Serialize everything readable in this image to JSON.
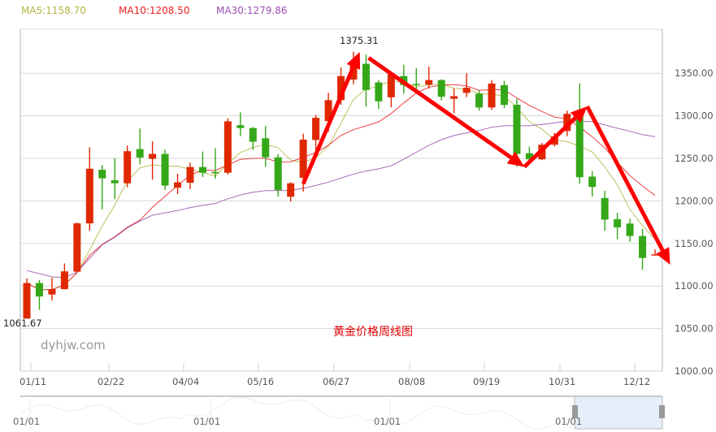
{
  "legend": {
    "ma5": {
      "label": "MA5:1158.70",
      "color": "#b5b540"
    },
    "ma10": {
      "label": "MA10:1208.50",
      "color": "#e82020"
    },
    "ma30": {
      "label": "MA30:1279.86",
      "color": "#9a4fb0"
    }
  },
  "title": "黄金价格周线图",
  "watermark": "dyhjw.com",
  "annotations": {
    "max_label": "1375.31",
    "min_label": "1061.67"
  },
  "navigator": {
    "labels": [
      "01/01",
      "01/01",
      "01/01",
      "01/01"
    ]
  },
  "colors": {
    "up": "#e02800",
    "down": "#34a818",
    "grid": "#d8d8d8",
    "axis": "#c5d2dc",
    "arrow": "#ff0000"
  },
  "chart_data": {
    "type": "candlestick",
    "title": "黄金价格周线图",
    "xlabel": "",
    "ylabel": "",
    "ylim": [
      1000,
      1400
    ],
    "yticks": [
      "1000.00",
      "1050.00",
      "1100.00",
      "1150.00",
      "1200.00",
      "1250.00",
      "1300.00",
      "1350.00"
    ],
    "xticks": [
      "01/11",
      "02/22",
      "04/04",
      "05/16",
      "06/27",
      "08/08",
      "09/19",
      "10/31",
      "12/12"
    ],
    "grid": true,
    "legend_position": "top",
    "ma": {
      "MA5": 1158.7,
      "MA10": 1208.5,
      "MA30": 1279.86
    },
    "max": 1375.31,
    "min": 1061.67,
    "candles": [
      {
        "o": 1061.7,
        "c": 1103.5,
        "h": 1109.0,
        "l": 1061.7
      },
      {
        "o": 1103.5,
        "c": 1087.7,
        "h": 1107.0,
        "l": 1072.0
      },
      {
        "o": 1090.0,
        "c": 1096.3,
        "h": 1109.6,
        "l": 1083.0
      },
      {
        "o": 1096.3,
        "c": 1117.2,
        "h": 1126.5,
        "l": 1096.0
      },
      {
        "o": 1116.8,
        "c": 1173.6,
        "h": 1174.5,
        "l": 1116.5
      },
      {
        "o": 1173.6,
        "c": 1237.8,
        "h": 1263.0,
        "l": 1165.0
      },
      {
        "o": 1236.6,
        "c": 1226.5,
        "h": 1242.0,
        "l": 1190.0
      },
      {
        "o": 1224.3,
        "c": 1220.7,
        "h": 1250.0,
        "l": 1202.0
      },
      {
        "o": 1220.7,
        "c": 1258.4,
        "h": 1265.0,
        "l": 1216.0
      },
      {
        "o": 1260.9,
        "c": 1250.9,
        "h": 1285.0,
        "l": 1243.0
      },
      {
        "o": 1249.4,
        "c": 1255.2,
        "h": 1270.0,
        "l": 1225.0
      },
      {
        "o": 1255.2,
        "c": 1218.0,
        "h": 1260.0,
        "l": 1213.0
      },
      {
        "o": 1215.5,
        "c": 1221.8,
        "h": 1232.0,
        "l": 1208.0
      },
      {
        "o": 1221.4,
        "c": 1239.8,
        "h": 1245.0,
        "l": 1214.0
      },
      {
        "o": 1239.8,
        "c": 1233.1,
        "h": 1258.0,
        "l": 1228.0
      },
      {
        "o": 1234.0,
        "c": 1232.4,
        "h": 1262.0,
        "l": 1226.0
      },
      {
        "o": 1233.1,
        "c": 1293.5,
        "h": 1297.0,
        "l": 1231.0
      },
      {
        "o": 1289.0,
        "c": 1285.6,
        "h": 1304.0,
        "l": 1276.0
      },
      {
        "o": 1285.6,
        "c": 1269.5,
        "h": 1287.0,
        "l": 1260.0
      },
      {
        "o": 1273.6,
        "c": 1251.2,
        "h": 1288.0,
        "l": 1240.0
      },
      {
        "o": 1251.2,
        "c": 1212.7,
        "h": 1255.0,
        "l": 1205.0
      },
      {
        "o": 1204.9,
        "c": 1220.7,
        "h": 1222.0,
        "l": 1199.0
      },
      {
        "o": 1227.2,
        "c": 1272.0,
        "h": 1279.0,
        "l": 1211.0
      },
      {
        "o": 1271.6,
        "c": 1297.6,
        "h": 1301.0,
        "l": 1251.0
      },
      {
        "o": 1293.8,
        "c": 1318.4,
        "h": 1327.0,
        "l": 1281.0
      },
      {
        "o": 1318.4,
        "c": 1346.7,
        "h": 1357.0,
        "l": 1313.0
      },
      {
        "o": 1342.6,
        "c": 1362.7,
        "h": 1375.3,
        "l": 1337.0
      },
      {
        "o": 1361.1,
        "c": 1330.3,
        "h": 1372.0,
        "l": 1311.0
      },
      {
        "o": 1339.2,
        "c": 1317.0,
        "h": 1342.0,
        "l": 1308.0
      },
      {
        "o": 1321.8,
        "c": 1348.7,
        "h": 1352.0,
        "l": 1310.0
      },
      {
        "o": 1346.7,
        "c": 1336.2,
        "h": 1360.0,
        "l": 1326.0
      },
      {
        "o": 1337.4,
        "c": 1337.2,
        "h": 1356.0,
        "l": 1330.0
      },
      {
        "o": 1336.6,
        "c": 1342.0,
        "h": 1358.0,
        "l": 1332.0
      },
      {
        "o": 1342.0,
        "c": 1322.4,
        "h": 1343.0,
        "l": 1318.0
      },
      {
        "o": 1320.0,
        "c": 1323.0,
        "h": 1332.0,
        "l": 1303.0
      },
      {
        "o": 1326.9,
        "c": 1333.0,
        "h": 1350.0,
        "l": 1322.0
      },
      {
        "o": 1326.0,
        "c": 1309.8,
        "h": 1330.0,
        "l": 1306.0
      },
      {
        "o": 1309.8,
        "c": 1337.9,
        "h": 1342.0,
        "l": 1307.0
      },
      {
        "o": 1336.0,
        "c": 1312.8,
        "h": 1341.0,
        "l": 1309.0
      },
      {
        "o": 1313.0,
        "c": 1255.2,
        "h": 1320.0,
        "l": 1240.0
      },
      {
        "o": 1256.0,
        "c": 1248.9,
        "h": 1264.0,
        "l": 1244.0
      },
      {
        "o": 1248.9,
        "c": 1266.0,
        "h": 1268.0,
        "l": 1248.0
      },
      {
        "o": 1266.0,
        "c": 1275.7,
        "h": 1280.0,
        "l": 1264.0
      },
      {
        "o": 1282.1,
        "c": 1302.3,
        "h": 1306.0,
        "l": 1276.0
      },
      {
        "o": 1304.6,
        "c": 1227.8,
        "h": 1338.0,
        "l": 1220.0
      },
      {
        "o": 1228.6,
        "c": 1216.4,
        "h": 1235.0,
        "l": 1205.0
      },
      {
        "o": 1203.4,
        "c": 1178.0,
        "h": 1212.0,
        "l": 1165.0
      },
      {
        "o": 1178.6,
        "c": 1168.9,
        "h": 1186.0,
        "l": 1155.0
      },
      {
        "o": 1173.4,
        "c": 1158.8,
        "h": 1179.0,
        "l": 1152.0
      },
      {
        "o": 1158.7,
        "c": 1133.0,
        "h": 1167.0,
        "l": 1119.0
      },
      {
        "o": 1137.2,
        "c": 1137.2,
        "h": 1143.0,
        "l": 1137.0
      }
    ],
    "arrows": [
      {
        "from": [
          1220.0,
          22
        ],
        "to": [
          1375.0,
          26.5
        ]
      },
      {
        "from": [
          1368.0,
          27.2
        ],
        "to": [
          1240.0,
          39.6
        ]
      },
      {
        "from": [
          1240.0,
          39.6
        ],
        "to": [
          1311.0,
          44.6
        ]
      },
      {
        "from": [
          1311.0,
          44.6
        ],
        "to": [
          1125.0,
          51.2
        ]
      }
    ]
  }
}
